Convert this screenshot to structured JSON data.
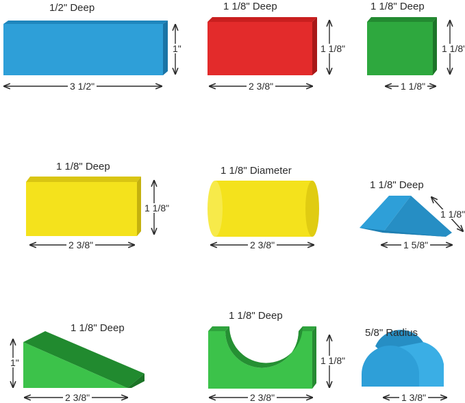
{
  "blocks": {
    "b1": {
      "depth": "1/2\" Deep",
      "width": "3 1/2\"",
      "height": "1\"",
      "color": "#2e9fd8"
    },
    "b2": {
      "depth": "1 1/8\" Deep",
      "width": "2 3/8\"",
      "height": "1 1/8\"",
      "color": "#e32b2b"
    },
    "b3": {
      "depth": "1 1/8\" Deep",
      "width": "1 1/8\"",
      "height": "1 1/8\"",
      "color": "#2ea83e"
    },
    "b4": {
      "depth": "1 1/8\" Deep",
      "width": "2 3/8\"",
      "height": "1 1/8\"",
      "color": "#f4e21c"
    },
    "b5": {
      "depth": "1 1/8\" Diameter",
      "width": "2 3/8\"",
      "color": "#f4e21c"
    },
    "b6": {
      "depth": "1 1/8\" Deep",
      "width": "1 5/8\"",
      "height": "1 1/8\"",
      "color": "#2e9fd8"
    },
    "b7": {
      "depth": "1 1/8\" Deep",
      "width": "2 3/8\"",
      "height": "1\"",
      "color": "#2ea83e"
    },
    "b8": {
      "depth": "1 1/8\" Deep",
      "width": "2 3/8\"",
      "height": "1 1/8\"",
      "color": "#3cc24a"
    },
    "b9": {
      "depth": "5/8\" Radius",
      "width": "1 3/8\"",
      "color": "#2e9fd8"
    }
  }
}
